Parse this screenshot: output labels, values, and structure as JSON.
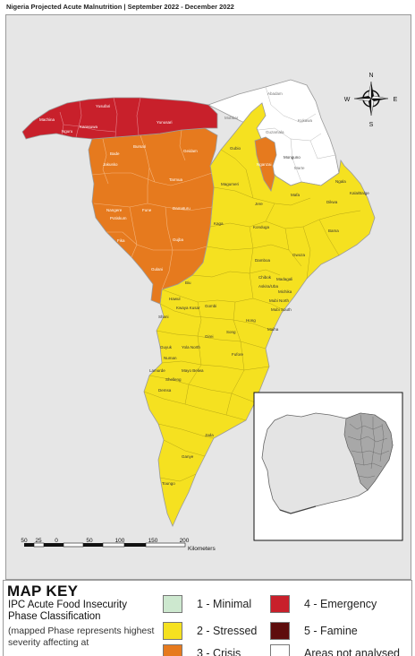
{
  "title": "Nigeria Projected Acute Malnutrition | September 2022 - December 2022",
  "compass": {
    "n": "N",
    "s": "S",
    "e": "E",
    "w": "W"
  },
  "scale_bar": {
    "ticks": [
      "50",
      "25",
      "0",
      "50",
      "100",
      "150",
      "200"
    ],
    "unit": "Kilometers"
  },
  "map_labels": {
    "yusufari": "Yusufari",
    "yunusari": "Yunusari",
    "machina": "Machina",
    "nguru": "Nguru",
    "karasuwa": "Karasuwa",
    "bursari": "Bursari",
    "geidam": "Geidam",
    "bade": "Bade",
    "jakusko": "Jakusko",
    "tarmua": "Tarmua",
    "nangere": "Nangere",
    "potiskum": "Potiskum",
    "fune": "Fune",
    "damaturu": "Damaturu",
    "fika": "Fika",
    "gujba": "Gujba",
    "gulani": "Gulani",
    "abadam": "Abadam",
    "kukawa": "Kukawa",
    "mobbar": "Mobbar",
    "guzamala": "Guzamala",
    "gubio": "Gubio",
    "nganzai": "Nganzai",
    "monguno": "Monguno",
    "marte": "Marte",
    "magumeri": "Magumeri",
    "mafa": "Mafa",
    "ngala": "Ngala",
    "kala_balge": "Kala/Balge",
    "dikwa": "Dikwa",
    "jere": "Jere",
    "konduga": "Konduga",
    "bama": "Bama",
    "kaga": "Kaga",
    "damboa": "Damboa",
    "gwoza": "Gwoza",
    "biu": "Biu",
    "chibok": "Chibok",
    "askira_uba": "Askira/Uba",
    "madagali": "Madagali",
    "michika": "Michika",
    "mubi_north": "Mubi North",
    "mubi_south": "Mubi South",
    "hawul": "Hawul",
    "shani": "Shani",
    "kwaya_kusar": "Kwaya Kusar",
    "hong": "Hong",
    "song": "Song",
    "gombi": "Gombi",
    "maiha": "Maiha",
    "girei": "Girei",
    "yola_north": "Yola North",
    "fufore": "Fufore",
    "guyuk": "Guyuk",
    "numan": "Numan",
    "mayo_belwa": "Mayo Belwa",
    "jada": "Jada",
    "ganye": "Ganye",
    "toungo": "Toungo",
    "lamurde": "Lamurde",
    "demsa": "Demsa",
    "shelleng": "Shelleng"
  },
  "map_key": {
    "title": "MAP KEY",
    "subtitle": "IPC Acute Food Insecurity Phase Classification",
    "note": "(mapped Phase represents highest severity affecting at",
    "items": [
      {
        "label": "1 - Minimal",
        "color": "#cde8cf"
      },
      {
        "label": "2 - Stressed",
        "color": "#f5e120"
      },
      {
        "label": "3 - Crisis",
        "color": "#e67a1e"
      },
      {
        "label": "4 - Emergency",
        "color": "#c8202b"
      },
      {
        "label": "5 - Famine",
        "color": "#5e0d0d"
      },
      {
        "label": "Areas not analysed",
        "color": "#ffffff"
      }
    ]
  }
}
